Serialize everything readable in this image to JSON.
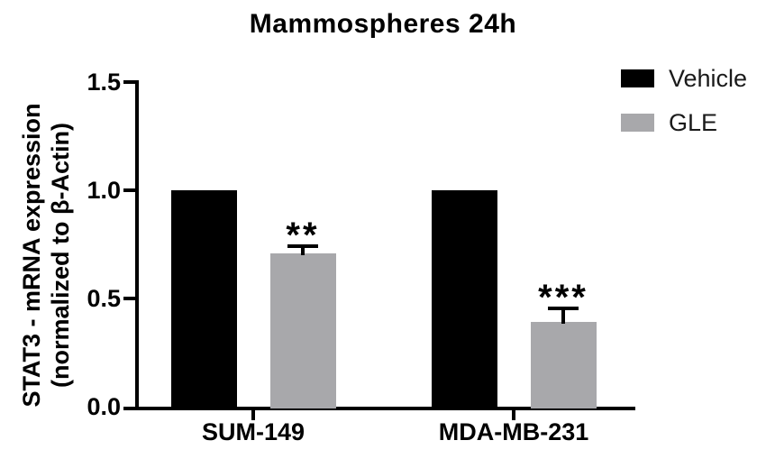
{
  "figure_title": "Mammospheres 24h",
  "chart_data": {
    "type": "bar",
    "title": "Mammospheres 24h",
    "categories": [
      "SUM-149",
      "MDA-MB-231"
    ],
    "series": [
      {
        "name": "Vehicle",
        "color": "#000000",
        "values": [
          1.0,
          1.0
        ],
        "errors": [
          0,
          0
        ]
      },
      {
        "name": "GLE",
        "color": "#a8a8ab",
        "values": [
          0.71,
          0.39
        ],
        "errors": [
          0.03,
          0.065
        ]
      }
    ],
    "significance": [
      {
        "category_index": 0,
        "series": "GLE",
        "marker": "**"
      },
      {
        "category_index": 1,
        "series": "GLE",
        "marker": "***"
      }
    ],
    "ylabel_lines": [
      "STAT3 - mRNA expression",
      "(normalized to β-Actin)"
    ],
    "ylabel": "STAT3 - mRNA expression (normalized to β-Actin)",
    "xlabel": "",
    "ylim": [
      0,
      1.5
    ],
    "yticks": [
      0.0,
      0.5,
      1.0,
      1.5
    ],
    "ytick_labels": [
      "0.0",
      "0.5",
      "1.0",
      "1.5"
    ],
    "grid": false,
    "legend_position": "top-right",
    "error_bars": "upper-only"
  }
}
